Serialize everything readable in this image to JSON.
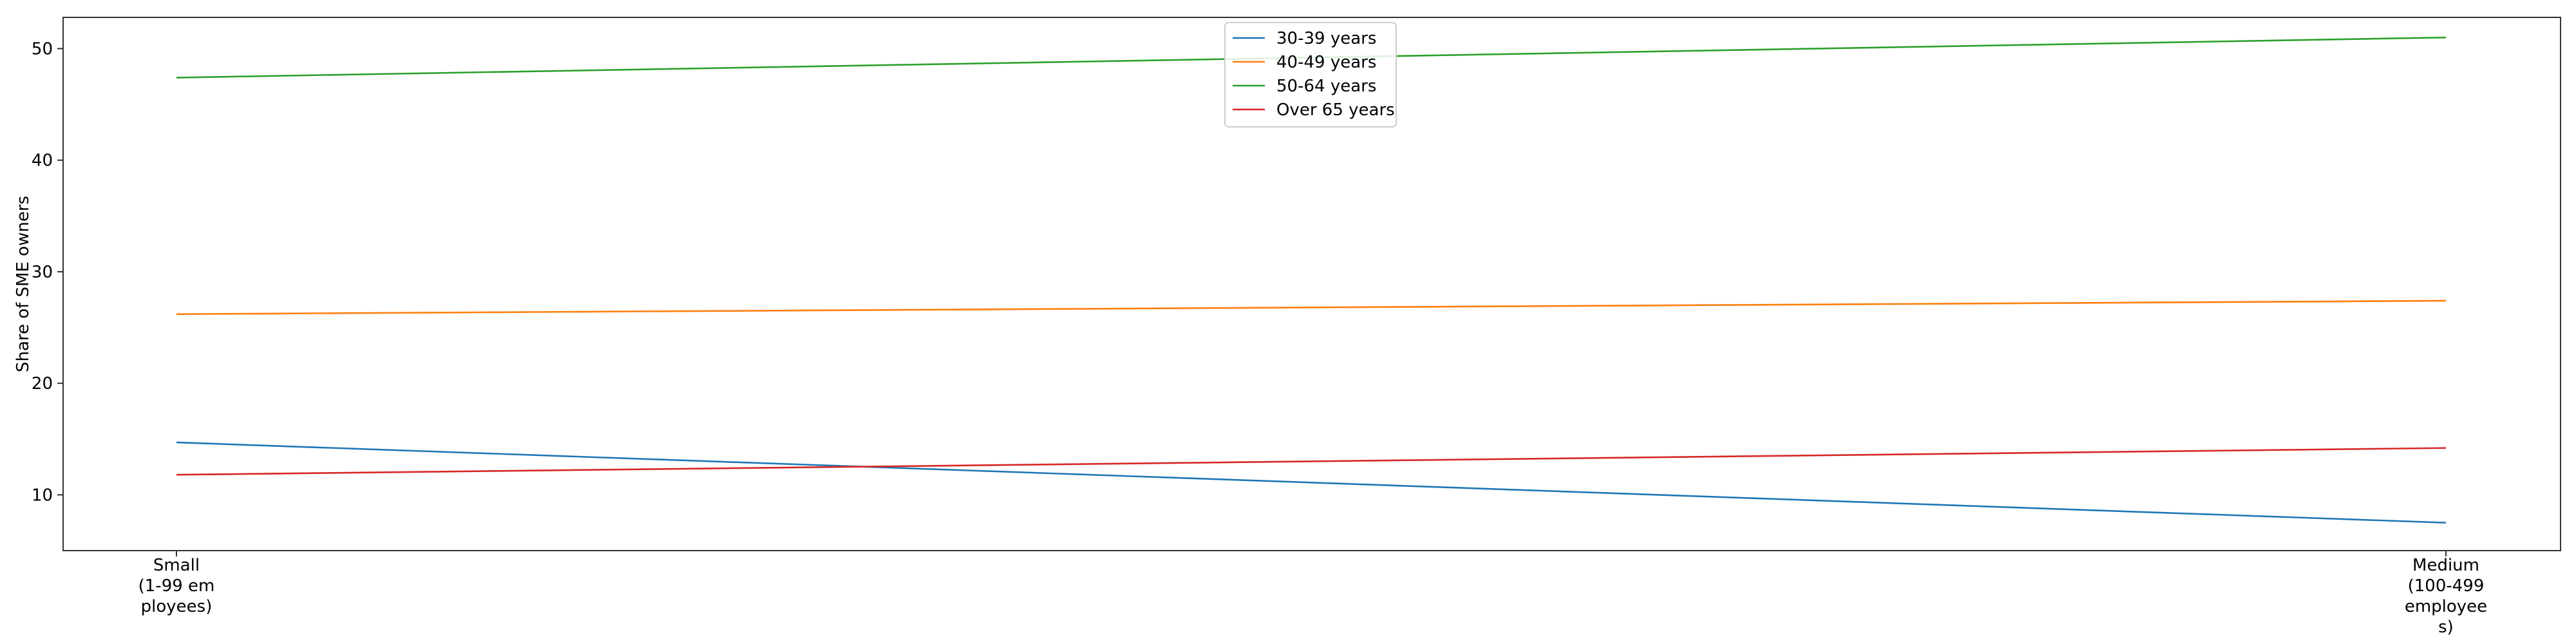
{
  "chart_data": {
    "type": "line",
    "title": "",
    "xlabel": "",
    "ylabel": "Share of SME owners",
    "categories": [
      [
        "Small",
        "(1-99 em",
        "ployees)"
      ],
      [
        "Medium",
        "(100-499",
        "employee",
        "s)"
      ]
    ],
    "yticks": [
      10,
      20,
      30,
      40,
      50
    ],
    "ylim": [
      5.0,
      52.8
    ],
    "grid": false,
    "legend_position": "upper center",
    "series": [
      {
        "name": "30-39 years",
        "color": "#1f77b4",
        "values": [
          14.7,
          7.5
        ]
      },
      {
        "name": "40-49 years",
        "color": "#ff7f0e",
        "values": [
          26.2,
          27.4
        ]
      },
      {
        "name": "50-64 years",
        "color": "#2ca02c",
        "values": [
          47.4,
          51.0
        ]
      },
      {
        "name": "Over 65 years",
        "color": "#d62728",
        "values": [
          11.8,
          14.2
        ]
      }
    ]
  }
}
